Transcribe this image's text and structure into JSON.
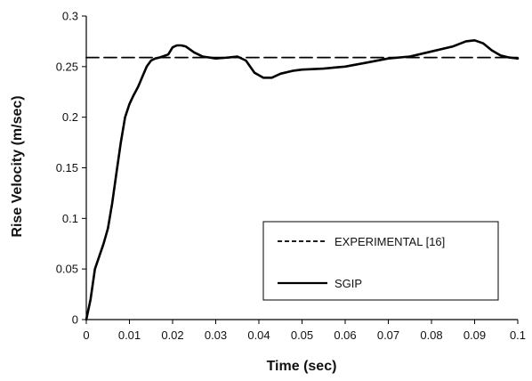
{
  "chart_data": {
    "type": "line",
    "title": "",
    "xlabel": "Time (sec)",
    "ylabel": "Rise Velocity (m/sec)",
    "xlim": [
      0,
      0.1
    ],
    "ylim": [
      0,
      0.3
    ],
    "x_ticks": [
      "0",
      "0.01",
      "0.02",
      "0.03",
      "0.04",
      "0.05",
      "0.06",
      "0.07",
      "0.08",
      "0.09",
      "0.1"
    ],
    "y_ticks": [
      "0",
      "0.05",
      "0.1",
      "0.15",
      "0.2",
      "0.25",
      "0.3"
    ],
    "grid": false,
    "legend_position": "bottom-right",
    "series": [
      {
        "name": "EXPERIMENTAL [16]",
        "style": "dashed",
        "color": "#000000",
        "points": [
          [
            0,
            0.259
          ],
          [
            0.1,
            0.259
          ]
        ]
      },
      {
        "name": "SGIP",
        "style": "solid",
        "color": "#000000",
        "points": [
          [
            0,
            0
          ],
          [
            0.001,
            0.02
          ],
          [
            0.002,
            0.05
          ],
          [
            0.004,
            0.075
          ],
          [
            0.005,
            0.09
          ],
          [
            0.006,
            0.115
          ],
          [
            0.007,
            0.145
          ],
          [
            0.008,
            0.175
          ],
          [
            0.009,
            0.2
          ],
          [
            0.01,
            0.213
          ],
          [
            0.011,
            0.222
          ],
          [
            0.012,
            0.23
          ],
          [
            0.013,
            0.24
          ],
          [
            0.014,
            0.25
          ],
          [
            0.015,
            0.256
          ],
          [
            0.016,
            0.258
          ],
          [
            0.017,
            0.259
          ],
          [
            0.019,
            0.262
          ],
          [
            0.02,
            0.269
          ],
          [
            0.021,
            0.271
          ],
          [
            0.022,
            0.271
          ],
          [
            0.023,
            0.27
          ],
          [
            0.025,
            0.264
          ],
          [
            0.027,
            0.26
          ],
          [
            0.03,
            0.258
          ],
          [
            0.033,
            0.259
          ],
          [
            0.035,
            0.26
          ],
          [
            0.037,
            0.256
          ],
          [
            0.039,
            0.244
          ],
          [
            0.041,
            0.239
          ],
          [
            0.043,
            0.239
          ],
          [
            0.045,
            0.243
          ],
          [
            0.048,
            0.246
          ],
          [
            0.05,
            0.247
          ],
          [
            0.055,
            0.248
          ],
          [
            0.06,
            0.25
          ],
          [
            0.065,
            0.254
          ],
          [
            0.07,
            0.258
          ],
          [
            0.075,
            0.26
          ],
          [
            0.08,
            0.265
          ],
          [
            0.085,
            0.27
          ],
          [
            0.088,
            0.275
          ],
          [
            0.09,
            0.276
          ],
          [
            0.092,
            0.273
          ],
          [
            0.094,
            0.266
          ],
          [
            0.096,
            0.261
          ],
          [
            0.098,
            0.259
          ],
          [
            0.1,
            0.258
          ]
        ]
      }
    ]
  }
}
